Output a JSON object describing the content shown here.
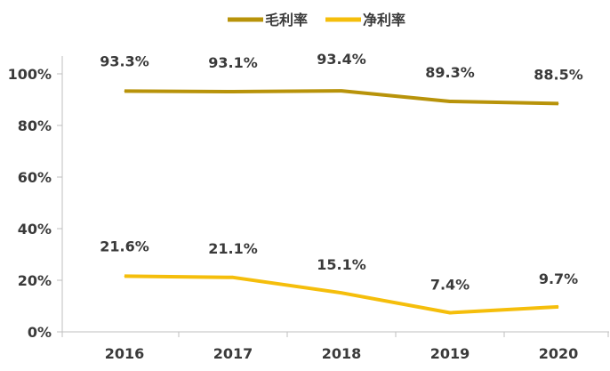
{
  "chart_data": {
    "type": "line",
    "categories": [
      "2016",
      "2017",
      "2018",
      "2019",
      "2020"
    ],
    "series": [
      {
        "name": "毛利率",
        "color": "#B8930A",
        "values": [
          93.3,
          93.1,
          93.4,
          89.3,
          88.5
        ],
        "labels": [
          "93.3%",
          "93.1%",
          "93.4%",
          "89.3%",
          "88.5%"
        ]
      },
      {
        "name": "净利率",
        "color": "#F5BE0B",
        "values": [
          21.6,
          21.1,
          15.1,
          7.4,
          9.7
        ],
        "labels": [
          "21.6%",
          "21.1%",
          "15.1%",
          "7.4%",
          "9.7%"
        ]
      }
    ],
    "ylim": [
      0,
      100
    ],
    "yticks": [
      0,
      20,
      40,
      60,
      80,
      100
    ],
    "ytick_labels": [
      "0%",
      "20%",
      "40%",
      "60%",
      "80%",
      "100%"
    ],
    "grid": false,
    "legend": "top-center"
  }
}
